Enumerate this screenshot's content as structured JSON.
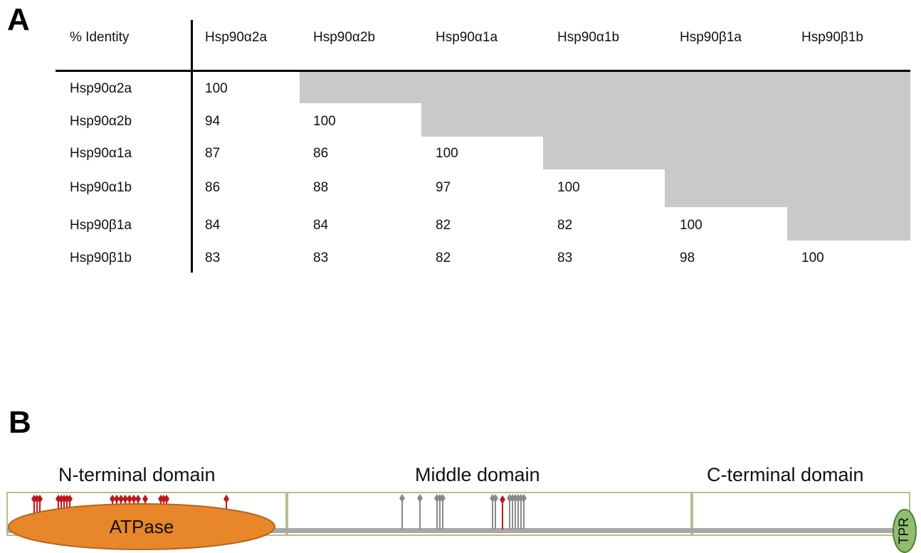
{
  "panel_a": {
    "letter": "A",
    "corner_label": "% Identity",
    "columns": [
      "Hsp90α2a",
      "Hsp90α2b",
      "Hsp90α1a",
      "Hsp90α1b",
      "Hsp90β1a",
      "Hsp90β1b"
    ],
    "rows": [
      {
        "label": "Hsp90α2a",
        "values": [
          "100"
        ]
      },
      {
        "label": "Hsp90α2b",
        "values": [
          "94",
          "100"
        ]
      },
      {
        "label": "Hsp90α1a",
        "values": [
          "87",
          "86",
          "100"
        ]
      },
      {
        "label": "Hsp90α1b",
        "values": [
          "86",
          "88",
          "97",
          "100"
        ]
      },
      {
        "label": "Hsp90β1a",
        "values": [
          "84",
          "84",
          "82",
          "82",
          "100"
        ]
      },
      {
        "label": "Hsp90β1b",
        "values": [
          "83",
          "83",
          "82",
          "83",
          "98",
          "100"
        ]
      }
    ],
    "shade_color": "#c9c9c9"
  },
  "panel_b": {
    "letter": "B",
    "domains": [
      "N-terminal domain",
      "Middle domain",
      "C-terminal domain"
    ],
    "atpase_label": "ATPase",
    "tpr_label": "TPR",
    "colors": {
      "box_border": "#b9bd8c",
      "backbone": "#a8a8a8",
      "atpase_fill": "#e8862a",
      "tpr_fill": "#8fbf6e",
      "marker_red": "#c0171b",
      "marker_gray": "#8a8a8a"
    }
  }
}
